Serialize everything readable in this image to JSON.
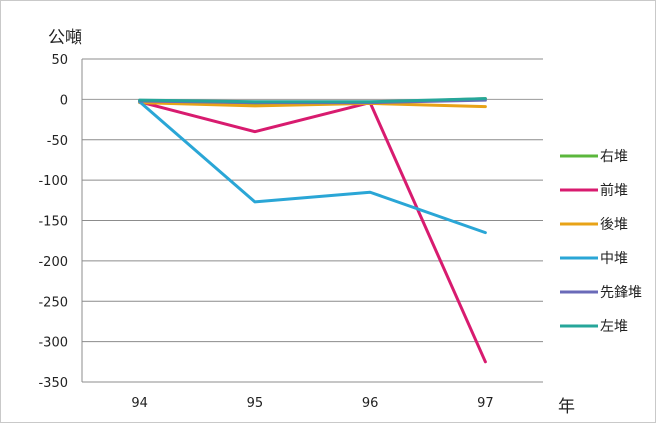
{
  "chart_data": {
    "type": "line",
    "title": "",
    "ylabel": "公噸",
    "xlabel": "年",
    "categories": [
      "94",
      "95",
      "96",
      "97"
    ],
    "ylim": [
      -350,
      50
    ],
    "yticks": [
      50,
      0,
      -50,
      -100,
      -150,
      -200,
      -250,
      -300,
      -350
    ],
    "grid": true,
    "legend_position": "right",
    "series": [
      {
        "name": "右堆",
        "color": "#5bb73c",
        "values": [
          -2,
          -5,
          -4,
          1
        ]
      },
      {
        "name": "前堆",
        "color": "#d81b6f",
        "values": [
          -3,
          -40,
          -4,
          -325
        ]
      },
      {
        "name": "後堆",
        "color": "#e8a317",
        "values": [
          -4,
          -8,
          -5,
          -9
        ]
      },
      {
        "name": "中堆",
        "color": "#2aa6d6",
        "values": [
          -3,
          -127,
          -115,
          -165
        ]
      },
      {
        "name": "先鋒堆",
        "color": "#6a6ab8",
        "values": [
          -2,
          -4,
          -4,
          -1
        ]
      },
      {
        "name": "左堆",
        "color": "#26a69a",
        "values": [
          -1,
          -3,
          -3,
          1
        ]
      }
    ]
  }
}
